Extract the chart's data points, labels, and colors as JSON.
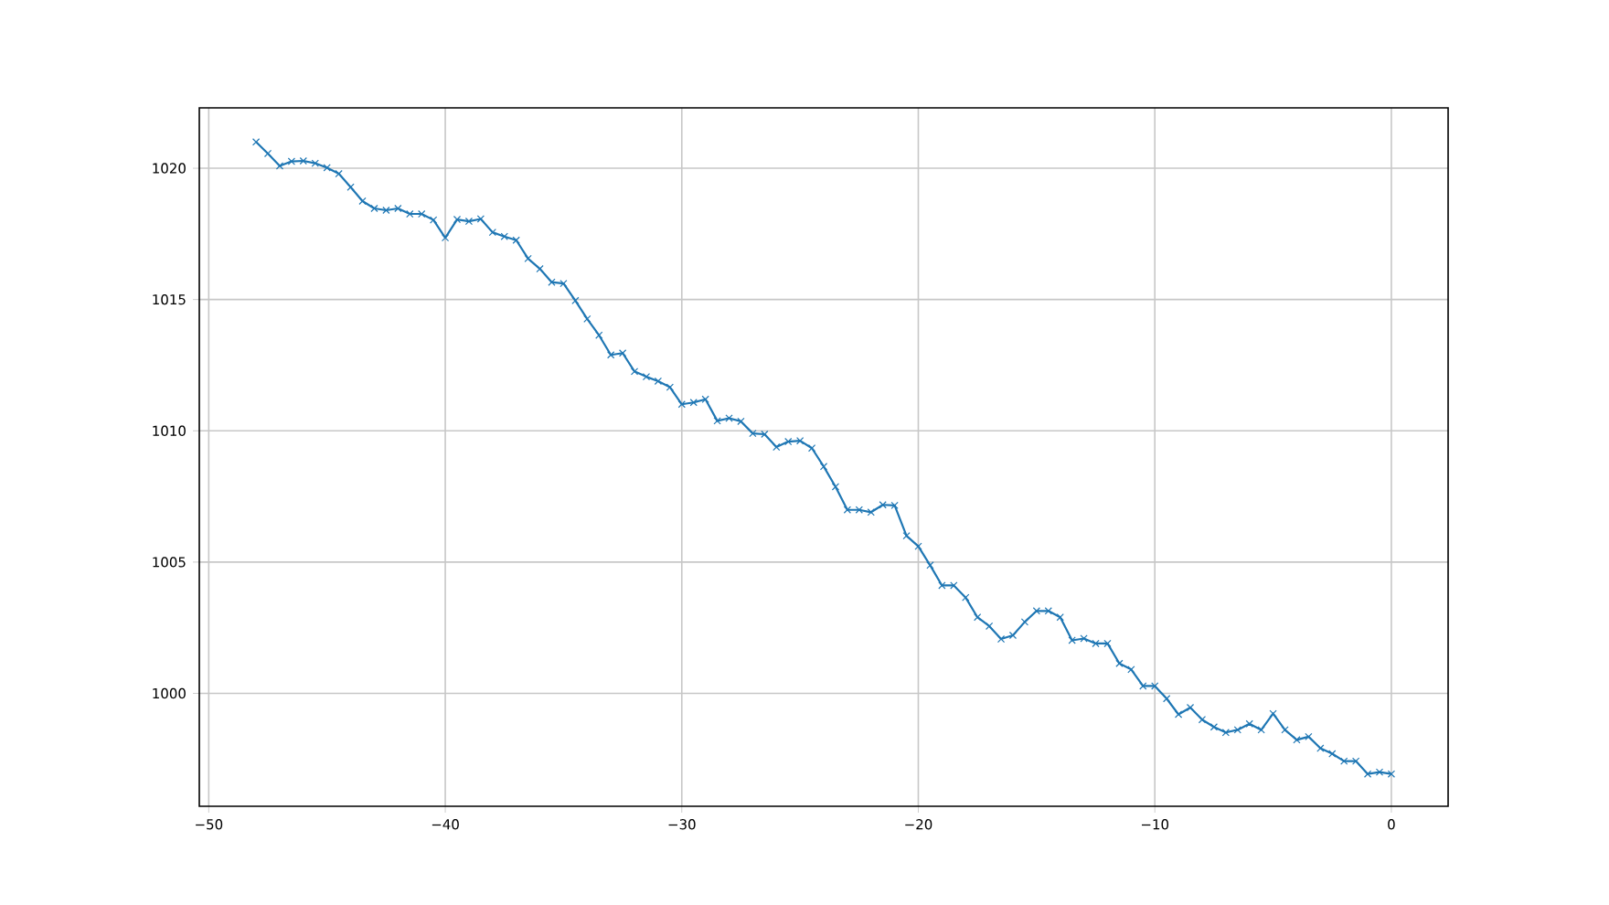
{
  "chart_data": {
    "type": "line",
    "color": "#1f77b4",
    "marker": "cross",
    "line_style": "solid",
    "grid": true,
    "x": [
      -48,
      -47.5,
      -47,
      -46.5,
      -46,
      -45.5,
      -45,
      -44.5,
      -44,
      -43.5,
      -43,
      -42.5,
      -42,
      -41.5,
      -41,
      -40.5,
      -40,
      -39.5,
      -39,
      -38.5,
      -38,
      -37.5,
      -37,
      -36.5,
      -36,
      -35.5,
      -35,
      -34.5,
      -34,
      -33.5,
      -33,
      -32.5,
      -32,
      -31.5,
      -31,
      -30.5,
      -30,
      -29.5,
      -29,
      -28.5,
      -28,
      -27.5,
      -27,
      -26.5,
      -26,
      -25.5,
      -25,
      -24.5,
      -24,
      -23.5,
      -23,
      -22.5,
      -22,
      -21.5,
      -21,
      -20.5,
      -20,
      -19.5,
      -19,
      -18.5,
      -18,
      -17.5,
      -17,
      -16.5,
      -16,
      -15.5,
      -15,
      -14.5,
      -14,
      -13.5,
      -13,
      -12.5,
      -12,
      -11.5,
      -11,
      -10.5,
      -10,
      -9.5,
      -9,
      -8.5,
      -8,
      -7.5,
      -7,
      -6.5,
      -6,
      -5.5,
      -5,
      -4.5,
      -4,
      -3.5,
      -3,
      -2.5,
      -2,
      -1.5,
      -1,
      -0.5,
      0
    ],
    "values": [
      1021.0,
      1020.56,
      1020.09,
      1020.26,
      1020.28,
      1020.19,
      1020.02,
      1019.79,
      1019.28,
      1018.75,
      1018.47,
      1018.4,
      1018.47,
      1018.26,
      1018.26,
      1018.03,
      1017.35,
      1018.05,
      1017.98,
      1018.07,
      1017.56,
      1017.4,
      1017.26,
      1016.56,
      1016.17,
      1015.66,
      1015.61,
      1014.96,
      1014.26,
      1013.64,
      1012.89,
      1012.96,
      1012.26,
      1012.06,
      1011.89,
      1011.66,
      1011.01,
      1011.08,
      1011.2,
      1010.38,
      1010.48,
      1010.36,
      1009.9,
      1009.87,
      1009.38,
      1009.59,
      1009.62,
      1009.34,
      1008.64,
      1007.87,
      1006.99,
      1006.99,
      1006.9,
      1007.18,
      1007.16,
      1006.0,
      1005.6,
      1004.88,
      1004.11,
      1004.11,
      1003.65,
      1002.9,
      1002.56,
      1002.07,
      1002.21,
      1002.72,
      1003.14,
      1003.14,
      1002.9,
      1002.02,
      1002.09,
      1001.9,
      1001.9,
      1001.14,
      1000.91,
      1000.28,
      1000.28,
      999.8,
      999.2,
      999.46,
      999.0,
      998.72,
      998.51,
      998.61,
      998.84,
      998.61,
      999.23,
      998.61,
      998.23,
      998.35,
      997.91,
      997.7,
      997.42,
      997.42,
      996.93,
      997.0,
      996.93
    ],
    "xlim": [
      -50.4,
      2.4
    ],
    "ylim": [
      995.7,
      1022.3
    ],
    "xticks": [
      {
        "value": -50,
        "label": "−50"
      },
      {
        "value": -40,
        "label": "−40"
      },
      {
        "value": -30,
        "label": "−30"
      },
      {
        "value": -20,
        "label": "−20"
      },
      {
        "value": -10,
        "label": "−10"
      },
      0
    ],
    "yticks": [
      1000,
      1005,
      1010,
      1015,
      1020
    ]
  }
}
